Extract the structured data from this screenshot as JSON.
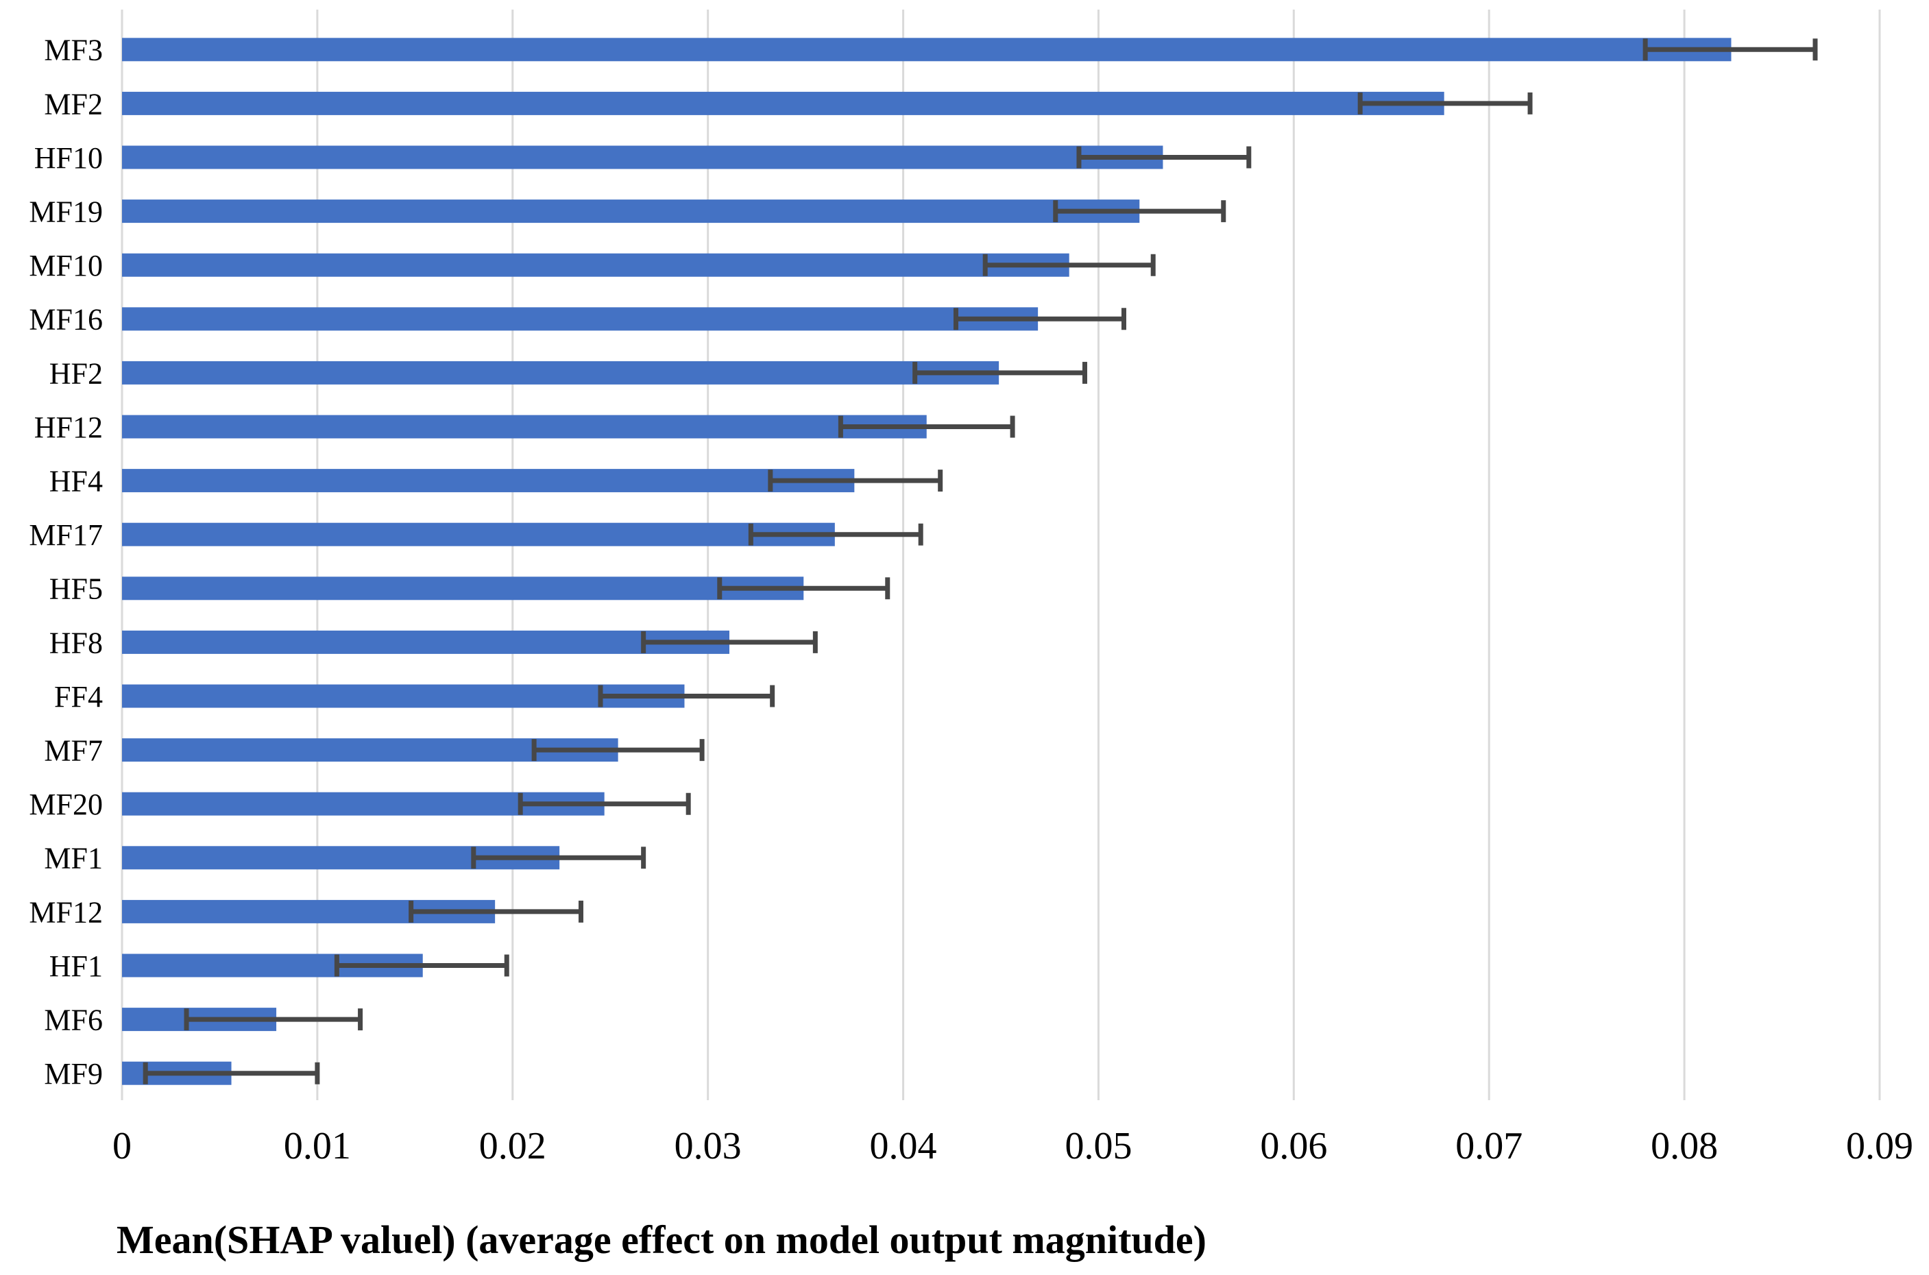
{
  "chart_data": {
    "type": "bar",
    "orientation": "horizontal",
    "title": "",
    "xlabel": "Mean(SHAP valuel) (average effect on model output magnitude)",
    "ylabel": "",
    "categories": [
      "MF3",
      "MF2",
      "HF10",
      "MF19",
      "MF10",
      "MF16",
      "HF2",
      "HF12",
      "HF4",
      "MF17",
      "HF5",
      "HF8",
      "FF4",
      "MF7",
      "MF20",
      "MF1",
      "MF12",
      "HF1",
      "MF6",
      "MF9"
    ],
    "values": [
      0.0824,
      0.0677,
      0.0533,
      0.0521,
      0.0485,
      0.0469,
      0.0449,
      0.0412,
      0.0375,
      0.0365,
      0.0349,
      0.0311,
      0.0288,
      0.0254,
      0.0247,
      0.0224,
      0.0191,
      0.0154,
      0.0079,
      0.0056
    ],
    "error_low": [
      0.078,
      0.0634,
      0.049,
      0.0478,
      0.0442,
      0.0427,
      0.0406,
      0.0368,
      0.0332,
      0.0322,
      0.0306,
      0.0267,
      0.0245,
      0.0211,
      0.0204,
      0.018,
      0.0148,
      0.011,
      0.0033,
      0.0012
    ],
    "error_high": [
      0.0867,
      0.0721,
      0.0577,
      0.0564,
      0.0528,
      0.0513,
      0.0493,
      0.0456,
      0.0419,
      0.0409,
      0.0392,
      0.0355,
      0.0333,
      0.0297,
      0.029,
      0.0267,
      0.0235,
      0.0197,
      0.0122,
      0.01
    ],
    "x_ticks": [
      0,
      0.01,
      0.02,
      0.03,
      0.04,
      0.05,
      0.06,
      0.07,
      0.08,
      0.09
    ],
    "x_tick_labels": [
      "0",
      "0.01",
      "0.02",
      "0.03",
      "0.04",
      "0.05",
      "0.06",
      "0.07",
      "0.08",
      "0.09"
    ],
    "xlim": [
      0,
      0.09
    ],
    "grid": true,
    "legend": false,
    "colors": {
      "bar": "#4472C4",
      "error_bar": "#474747",
      "gridline": "#DADADA",
      "text": "#000000",
      "background": "#FFFFFF"
    }
  }
}
